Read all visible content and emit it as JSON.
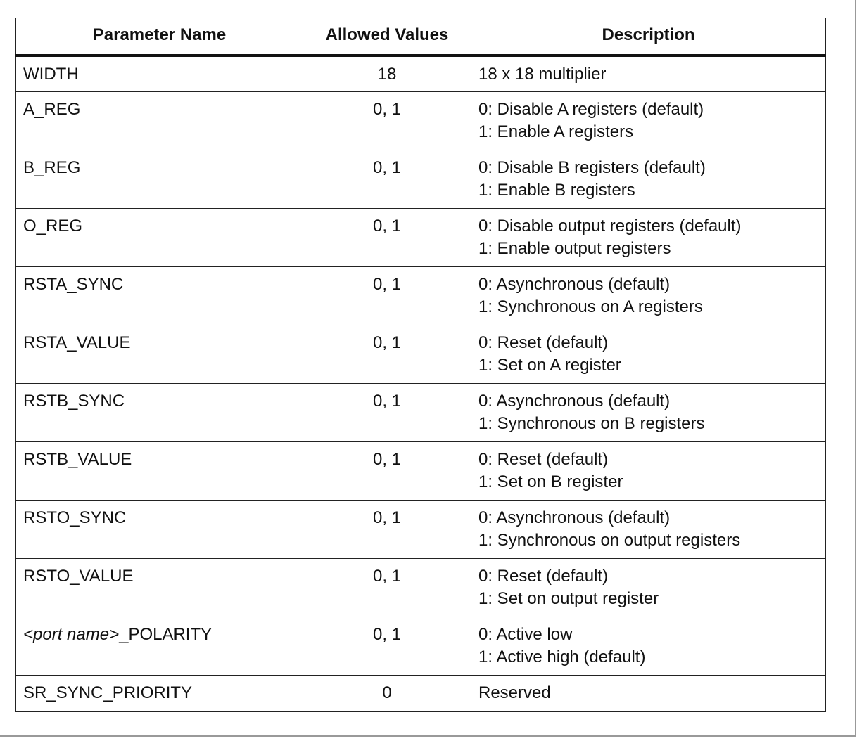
{
  "table": {
    "header": [
      "Parameter Name",
      "Allowed Values",
      "Description"
    ],
    "rows": [
      [
        "WIDTH",
        "18",
        [
          "18 x 18 multiplier"
        ]
      ],
      [
        "A_REG",
        "0, 1",
        [
          "0: Disable A registers (default)",
          "1: Enable A registers"
        ]
      ],
      [
        "B_REG",
        "0, 1",
        [
          "0: Disable B registers (default)",
          "1: Enable B registers"
        ]
      ],
      [
        "O_REG",
        "0, 1",
        [
          "0: Disable output registers (default)",
          "1: Enable output registers"
        ]
      ],
      [
        "RSTA_SYNC",
        "0, 1",
        [
          "0: Asynchronous (default)",
          "1: Synchronous on A registers"
        ]
      ],
      [
        "RSTA_VALUE",
        "0, 1",
        [
          "0: Reset (default)",
          "1: Set on A register"
        ]
      ],
      [
        "RSTB_SYNC",
        "0, 1",
        [
          "0: Asynchronous (default)",
          "1: Synchronous on B registers"
        ]
      ],
      [
        "RSTB_VALUE",
        "0, 1",
        [
          "0: Reset (default)",
          "1: Set on B register"
        ]
      ],
      [
        "RSTO_SYNC",
        "0, 1",
        [
          "0: Asynchronous (default)",
          "1: Synchronous on output registers"
        ]
      ],
      [
        "RSTO_VALUE",
        "0, 1",
        [
          "0: Reset (default)",
          "1: Set on output register"
        ]
      ],
      [
        [
          "<port name>",
          "_POLARITY"
        ],
        "0, 1",
        [
          "0: Active low",
          "1: Active high (default)"
        ]
      ],
      [
        "SR_SYNC_PRIORITY",
        "0",
        [
          "Reserved"
        ]
      ]
    ]
  }
}
